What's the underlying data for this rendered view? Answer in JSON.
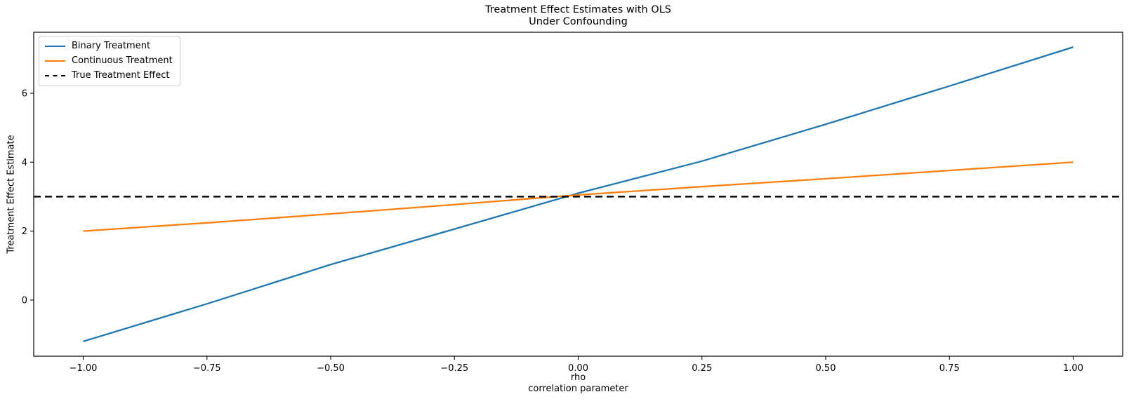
{
  "chart_data": {
    "type": "line",
    "title": "Treatment Effect Estimates with OLS\nUnder Confounding",
    "xlabel": "rho\ncorrelation parameter",
    "ylabel": "Treatment Effect Estimate",
    "x": [
      -1.0,
      -0.75,
      -0.5,
      -0.25,
      0.0,
      0.25,
      0.5,
      0.75,
      1.0
    ],
    "series": [
      {
        "name": "Binary Treatment",
        "color": "#1f77b4",
        "dash": "solid",
        "values": [
          -1.2,
          -0.11,
          1.03,
          2.06,
          3.1,
          4.03,
          5.1,
          6.21,
          7.34
        ]
      },
      {
        "name": "Continuous Treatment",
        "color": "#ff7f0e",
        "dash": "solid",
        "values": [
          2.0,
          2.24,
          2.5,
          2.77,
          3.05,
          3.29,
          3.52,
          3.76,
          4.0
        ]
      },
      {
        "name": "True Treatment Effect",
        "color": "#000000",
        "dash": "dashed",
        "constant": 3.0
      }
    ],
    "xlim": [
      -1.1,
      1.1
    ],
    "ylim": [
      -1.63,
      7.77
    ],
    "xticks": {
      "values": [
        -1.0,
        -0.75,
        -0.5,
        -0.25,
        0.0,
        0.25,
        0.5,
        0.75,
        1.0
      ],
      "labels": [
        "−1.00",
        "−0.75",
        "−0.50",
        "−0.25",
        "0.00",
        "0.25",
        "0.50",
        "0.75",
        "1.00"
      ]
    },
    "yticks": {
      "values": [
        0,
        2,
        4,
        6
      ],
      "labels": [
        "0",
        "2",
        "4",
        "6"
      ]
    },
    "grid": false,
    "background": "#ffffff",
    "legend": {
      "position": "upper left",
      "items": [
        "Binary Treatment",
        "Continuous Treatment",
        "True Treatment Effect"
      ]
    }
  }
}
